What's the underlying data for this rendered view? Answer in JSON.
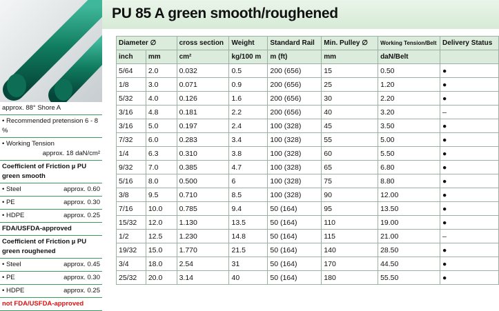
{
  "title": "PU 85 A green smooth/roughened",
  "sidebar": {
    "hardness": "approx. 88° Shore A",
    "pretension": "Recommended pretension 6 - 8 %",
    "tension_label": "Working Tension",
    "tension_value": "approx. 18 daN/cm²",
    "smooth": {
      "heading": "Coefficient of Friction µ PU green smooth",
      "items": [
        [
          "Steel",
          "approx. 0.60"
        ],
        [
          "PE",
          "approx. 0.30"
        ],
        [
          "HDPE",
          "approx. 0.25"
        ]
      ],
      "note": "FDA/USFDA-approved"
    },
    "rough": {
      "heading": "Coefficient of Friction µ PU green roughened",
      "items": [
        [
          "Steel",
          "approx. 0.45"
        ],
        [
          "PE",
          "approx. 0.30"
        ],
        [
          "HDPE",
          "approx. 0.25"
        ]
      ],
      "note": "not FDA/USFDA-approved"
    }
  },
  "table": {
    "header": [
      "Diameter ∅",
      "cross section",
      "Weight",
      "Standard Rail",
      "Min. Pulley ∅",
      "Working Tension/Belt",
      "Delivery Status"
    ],
    "units": [
      "inch",
      "mm",
      "cm²",
      "kg/100 m",
      "m (ft)",
      "mm",
      "daN/Belt"
    ],
    "rows": [
      [
        "5/64",
        "2.0",
        "0.032",
        "0.5",
        "200 (656)",
        "15",
        "0.50",
        "●"
      ],
      [
        "1/8",
        "3.0",
        "0.071",
        "0.9",
        "200 (656)",
        "25",
        "1.20",
        "●"
      ],
      [
        "5/32",
        "4.0",
        "0.126",
        "1.6",
        "200 (656)",
        "30",
        "2.20",
        "●"
      ],
      [
        "3/16",
        "4.8",
        "0.181",
        "2.2",
        "200 (656)",
        "40",
        "3.20",
        "–"
      ],
      [
        "3/16",
        "5.0",
        "0.197",
        "2.4",
        "100 (328)",
        "45",
        "3.50",
        "●"
      ],
      [
        "7/32",
        "6.0",
        "0.283",
        "3.4",
        "100 (328)",
        "55",
        "5.00",
        "●"
      ],
      [
        "1/4",
        "6.3",
        "0.310",
        "3.8",
        "100 (328)",
        "60",
        "5.50",
        "●"
      ],
      [
        "9/32",
        "7.0",
        "0.385",
        "4.7",
        "100 (328)",
        "65",
        "6.80",
        "●"
      ],
      [
        "5/16",
        "8.0",
        "0.500",
        "6",
        "100 (328)",
        "75",
        "8.80",
        "●"
      ],
      [
        "3/8",
        "9.5",
        "0.710",
        "8.5",
        "100 (328)",
        "90",
        "12.00",
        "●"
      ],
      [
        "7/16",
        "10.0",
        "0.785",
        "9.4",
        "50 (164)",
        "95",
        "13.50",
        "●"
      ],
      [
        "15/32",
        "12.0",
        "1.130",
        "13.5",
        "50 (164)",
        "110",
        "19.00",
        "●"
      ],
      [
        "1/2",
        "12.5",
        "1.230",
        "14.8",
        "50 (164)",
        "115",
        "21.00",
        "–"
      ],
      [
        "19/32",
        "15.0",
        "1.770",
        "21.5",
        "50 (164)",
        "140",
        "28.50",
        "●"
      ],
      [
        "3/4",
        "18.0",
        "2.54",
        "31",
        "50 (164)",
        "170",
        "44.50",
        "●"
      ],
      [
        "25/32",
        "20.0",
        "3.14",
        "40",
        "50 (164)",
        "180",
        "55.50",
        "●"
      ]
    ]
  }
}
